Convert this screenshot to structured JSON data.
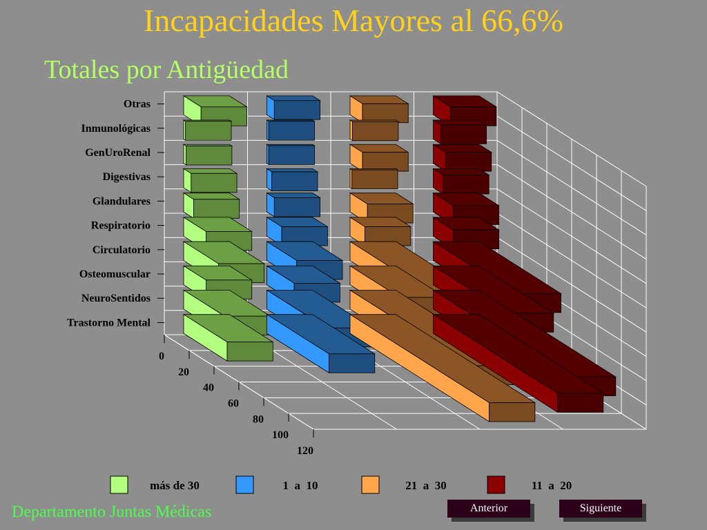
{
  "slide": {
    "title": "Incapacidades Mayores al 66,6%",
    "subtitle": "Totales por Antigüedad",
    "footer": "Departamento Juntas Médicas",
    "nav": {
      "prev": "Anterior",
      "next": "Siguiente"
    }
  },
  "chart_data": {
    "type": "bar",
    "orientation": "horizontal-3d",
    "title": "",
    "categories": [
      "Trastorno Mental",
      "NeuroSentidos",
      "Osteomuscular",
      "Circulatorio",
      "Respiratorio",
      "Glandulares",
      "Digestivas",
      "GenUroRenal",
      "Inmunológicas",
      "Otras"
    ],
    "x_ticks": [
      "0",
      "20",
      "40",
      "60",
      "80",
      "100",
      "120"
    ],
    "xlim": [
      0,
      120
    ],
    "series": [
      {
        "name": "más de 30",
        "color": "#5f8a3c",
        "light": "#b3ff80",
        "values": [
          35,
          33,
          18,
          28,
          18,
          8,
          6,
          2,
          0,
          14
        ]
      },
      {
        "name": "1  a  10",
        "color": "#1e4f80",
        "light": "#3399ff",
        "values": [
          50,
          48,
          22,
          24,
          12,
          6,
          4,
          0,
          0,
          6
        ]
      },
      {
        "name": "21  a  30",
        "color": "#7a4a20",
        "light": "#ffa64d",
        "values": [
          112,
          96,
          40,
          66,
          12,
          14,
          0,
          10,
          2,
          10
        ]
      },
      {
        "name": "11  a  20",
        "color": "#4a0000",
        "light": "#8b0000",
        "values": [
          100,
          110,
          60,
          66,
          16,
          16,
          8,
          10,
          6,
          14
        ]
      }
    ],
    "legend_position": "bottom",
    "grid": true
  }
}
